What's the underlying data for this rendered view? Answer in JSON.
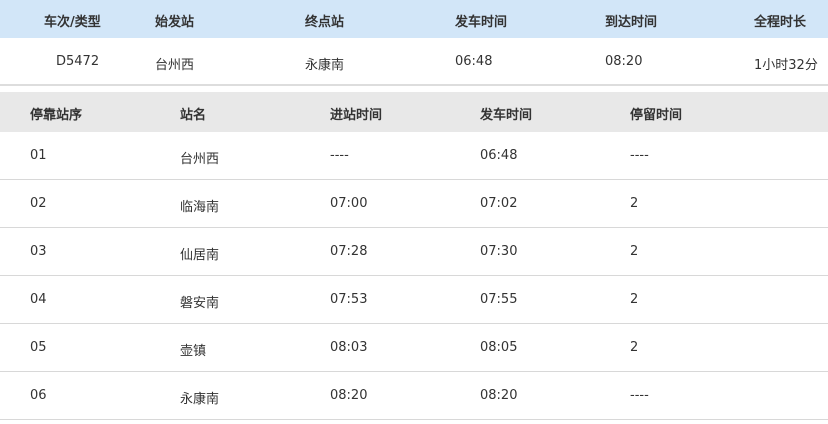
{
  "train_header": [
    "车次/类型",
    "始发站",
    "终点站",
    "发车时间",
    "到达时间",
    "全程时长"
  ],
  "train": [
    "D5472",
    "台州西",
    "永康南",
    "06:48",
    "08:20",
    "1小时32分"
  ],
  "stops_header": [
    "停靠站序",
    "站名",
    "进站时间",
    "发车时间",
    "停留时间"
  ],
  "stops": [
    [
      "01",
      "台州西",
      "----",
      "06:48",
      "----"
    ],
    [
      "02",
      "临海南",
      "07:00",
      "07:02",
      "2"
    ],
    [
      "03",
      "仙居南",
      "07:28",
      "07:30",
      "2"
    ],
    [
      "04",
      "磐安南",
      "07:53",
      "07:55",
      "2"
    ],
    [
      "05",
      "壶镇",
      "08:03",
      "08:05",
      "2"
    ],
    [
      "06",
      "永康南",
      "08:20",
      "08:20",
      "----"
    ]
  ]
}
